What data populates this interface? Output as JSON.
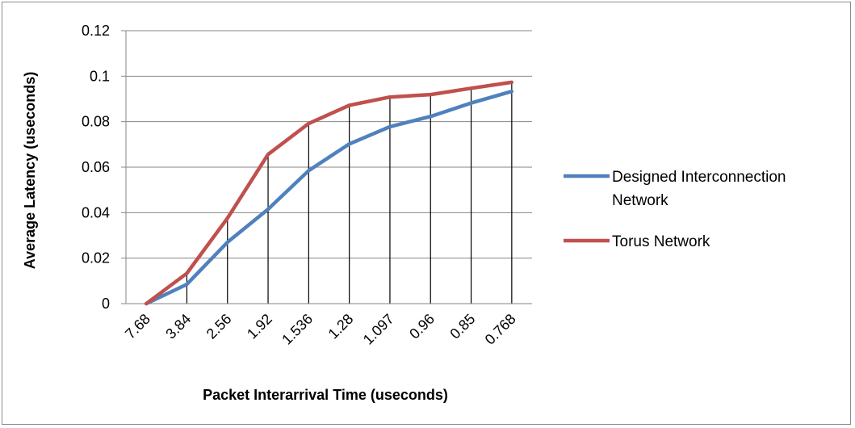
{
  "chart_data": {
    "type": "line",
    "title": "",
    "xlabel": "Packet  Interarrival Time (useconds)",
    "ylabel": "Average   Latency (useconds)",
    "categories": [
      "7.68",
      "3.84",
      "2.56",
      "1.92",
      "1.536",
      "1.28",
      "1.097",
      "0.96",
      "0.85",
      "0.768"
    ],
    "y_ticks": [
      "0",
      "0.02",
      "0.04",
      "0.06",
      "0.08",
      "0.1",
      "0.12"
    ],
    "ylim": [
      0,
      0.12
    ],
    "grid": "horizontal",
    "drop_lines": true,
    "legend_position": "right",
    "series": [
      {
        "name": "Designed Interconnection Network",
        "legend_lines": [
          "Designed Interconnection",
          "Network"
        ],
        "color": "#4f81bd",
        "values": [
          0,
          0.0085,
          0.027,
          0.0415,
          0.0585,
          0.0702,
          0.0778,
          0.0823,
          0.0882,
          0.0933
        ]
      },
      {
        "name": "Torus Network",
        "legend_lines": [
          "Torus Network"
        ],
        "color": "#c0504d",
        "values": [
          0,
          0.0133,
          0.0376,
          0.0656,
          0.0792,
          0.0872,
          0.0908,
          0.0919,
          0.0947,
          0.0973
        ]
      }
    ]
  }
}
